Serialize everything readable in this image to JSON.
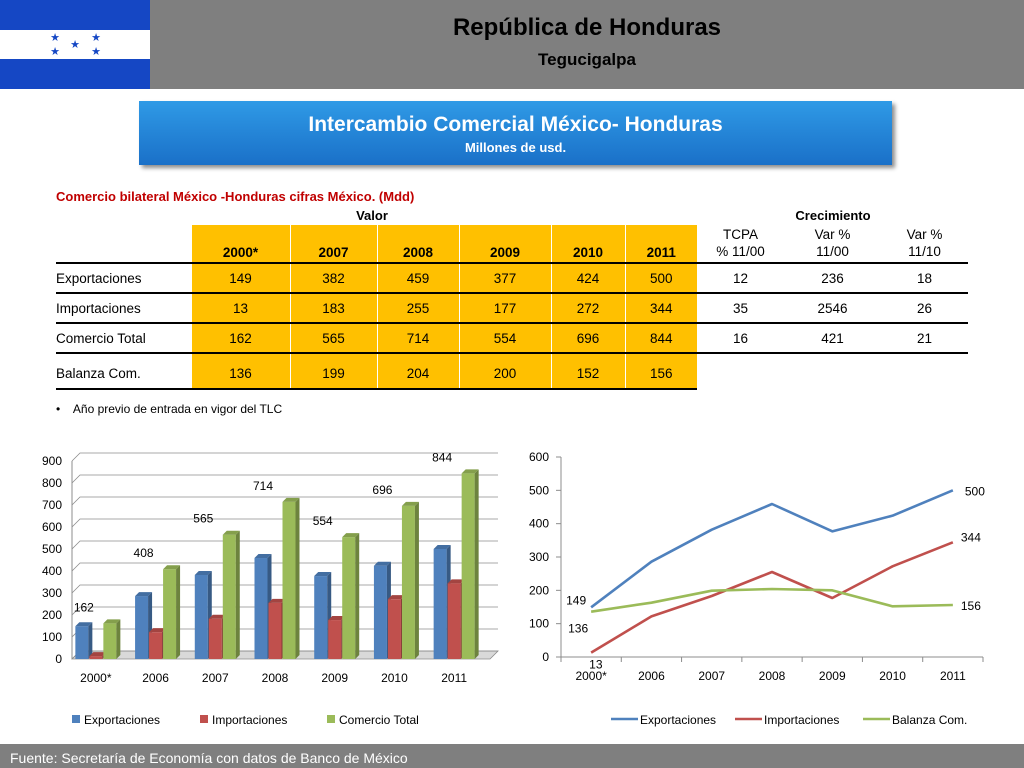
{
  "header": {
    "country": "República de Honduras",
    "city": "Tegucigalpa",
    "flag_colors": {
      "stripe": "#1547c4",
      "center": "#ffffff",
      "stars": "#1547c4"
    }
  },
  "banner": {
    "title": "Intercambio Comercial México- Honduras",
    "subtitle": "Millones de usd."
  },
  "table": {
    "caption": "Comercio bilateral México -Honduras cifras México. (Mdd)",
    "group_value": "Valor",
    "group_growth": "Crecimiento",
    "years": [
      "2000*",
      "2007",
      "2008",
      "2009",
      "2010",
      "2011"
    ],
    "growth_headers": [
      {
        "line1": "TCPA",
        "line2": "% 11/00"
      },
      {
        "line1": "Var %",
        "line2": "11/00"
      },
      {
        "line1": "Var %",
        "line2": "11/10"
      }
    ],
    "rows": [
      {
        "label": "Exportaciones",
        "values": [
          "149",
          "382",
          "459",
          "377",
          "424",
          "500"
        ],
        "growth": [
          "12",
          "236",
          "18"
        ]
      },
      {
        "label": "Importaciones",
        "values": [
          "13",
          "183",
          "255",
          "177",
          "272",
          "344"
        ],
        "growth": [
          "35",
          "2546",
          "26"
        ]
      },
      {
        "label": "Comercio Total",
        "values": [
          "162",
          "565",
          "714",
          "554",
          "696",
          "844"
        ],
        "growth": [
          "16",
          "421",
          "21"
        ]
      },
      {
        "label": "Balanza Com.",
        "values": [
          "136",
          "199",
          "204",
          "200",
          "152",
          "156"
        ],
        "growth": [
          "",
          "",
          ""
        ]
      }
    ],
    "highlight_color": "#ffc000",
    "footnote": "Año previo de entrada en vigor del TLC"
  },
  "chart_data": [
    {
      "type": "bar",
      "categories": [
        "2000*",
        "2006",
        "2007",
        "2008",
        "2009",
        "2010",
        "2011"
      ],
      "series": [
        {
          "name": "Exportaciones",
          "values": [
            149,
            286,
            382,
            459,
            377,
            424,
            500
          ],
          "color": "#4f81bd"
        },
        {
          "name": "Importaciones",
          "values": [
            13,
            122,
            183,
            255,
            177,
            272,
            344
          ],
          "color": "#c0504d"
        },
        {
          "name": "Comercio Total",
          "values": [
            162,
            408,
            565,
            714,
            554,
            696,
            844
          ],
          "color": "#9bbb59"
        }
      ],
      "data_labels": {
        "series": "Comercio Total",
        "labels": [
          "162",
          "408",
          "565",
          "714",
          "554",
          "696",
          "844"
        ]
      },
      "ylim": [
        0,
        900
      ],
      "yticks": [
        "0",
        "100",
        "200",
        "300",
        "400",
        "500",
        "600",
        "700",
        "800",
        "900"
      ],
      "style": "3d-clustered",
      "legend": "bottom"
    },
    {
      "type": "line",
      "categories": [
        "2000*",
        "2006",
        "2007",
        "2008",
        "2009",
        "2010",
        "2011"
      ],
      "series": [
        {
          "name": "Exportaciones",
          "values": [
            149,
            286,
            382,
            459,
            377,
            424,
            500
          ],
          "color": "#4f81bd"
        },
        {
          "name": "Importaciones",
          "values": [
            13,
            122,
            183,
            255,
            177,
            272,
            344
          ],
          "color": "#c0504d"
        },
        {
          "name": "Balanza Com.",
          "values": [
            136,
            163,
            199,
            204,
            200,
            152,
            156
          ],
          "color": "#9bbb59"
        }
      ],
      "point_labels": [
        {
          "series": 0,
          "index": 0,
          "text": "149"
        },
        {
          "series": 2,
          "index": 0,
          "text": "136"
        },
        {
          "series": 1,
          "index": 0,
          "text": "13"
        },
        {
          "series": 0,
          "index": 6,
          "text": "500"
        },
        {
          "series": 1,
          "index": 6,
          "text": "344"
        },
        {
          "series": 2,
          "index": 6,
          "text": "156"
        }
      ],
      "ylim": [
        0,
        600
      ],
      "yticks": [
        "0",
        "100",
        "200",
        "300",
        "400",
        "500",
        "600"
      ],
      "legend": "bottom"
    }
  ],
  "footer": {
    "source": "Fuente: Secretaría de Economía con datos de Banco de México"
  }
}
